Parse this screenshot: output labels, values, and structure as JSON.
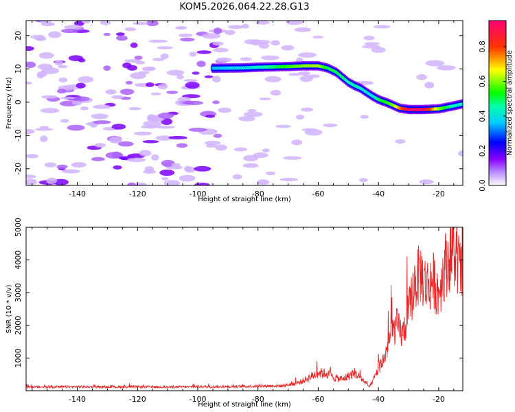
{
  "figure": {
    "title": "KOM5.2026.064.22.28.G13"
  },
  "chart_data": [
    {
      "type": "heatmap",
      "id": "spectrogram",
      "xlabel": "Height of straight line (km)",
      "ylabel": "Frequency (Hz)",
      "xlim": [
        -157,
        -12
      ],
      "ylim": [
        -25,
        24.5
      ],
      "xticks": [
        -140,
        -120,
        -100,
        -80,
        -60,
        -40,
        -20
      ],
      "yticks": [
        -20,
        -10,
        0,
        10,
        20
      ],
      "colorbar": {
        "label": "Normalized spectral amplitude",
        "range": [
          0,
          0.95
        ],
        "ticks": [
          0,
          0.2,
          0.4,
          0.6,
          0.8
        ],
        "colors": [
          "#ffffff",
          "#8800ff",
          "#0000ff",
          "#00ffff",
          "#00ff00",
          "#ffff00",
          "#ff0000",
          "#ff0077"
        ]
      },
      "signal_trace": {
        "description": "frequency track of strong signal",
        "height_km": [
          -95,
          -85,
          -80,
          -70,
          -65,
          -60,
          -57,
          -54,
          -52,
          -50,
          -48,
          -46,
          -44,
          -42,
          -40,
          -37,
          -35,
          -33,
          -30,
          -25,
          -20,
          -16,
          -12
        ],
        "frequency_hz": [
          10.2,
          10.3,
          10.5,
          10.7,
          10.9,
          10.9,
          10.3,
          9.0,
          7.5,
          6.0,
          5.0,
          4.2,
          3.0,
          1.8,
          0.8,
          -0.2,
          -1.0,
          -1.8,
          -2.2,
          -2.2,
          -2.0,
          -1.3,
          -0.5
        ],
        "amplitude": [
          0.35,
          0.38,
          0.42,
          0.55,
          0.6,
          0.62,
          0.5,
          0.5,
          0.48,
          0.45,
          0.45,
          0.42,
          0.4,
          0.4,
          0.5,
          0.55,
          0.6,
          0.75,
          0.92,
          0.92,
          0.6,
          0.45,
          0.4
        ]
      }
    },
    {
      "type": "line",
      "id": "snr",
      "xlabel": "Height of straight line (km)",
      "ylabel": "SNR (10 * v/v)",
      "xlim": [
        -157,
        -12
      ],
      "ylim": [
        0,
        5000
      ],
      "xticks": [
        -140,
        -120,
        -100,
        -80,
        -60,
        -40,
        -20
      ],
      "yticks": [
        1000,
        2000,
        3000,
        4000,
        5000
      ],
      "series": [
        {
          "name": "SNR",
          "color": "#ee2222",
          "x": [
            -157,
            -150,
            -140,
            -130,
            -120,
            -110,
            -100,
            -90,
            -80,
            -72,
            -68,
            -65,
            -62,
            -60,
            -57,
            -55,
            -52,
            -50,
            -48,
            -46,
            -44,
            -43,
            -42,
            -40,
            -38,
            -36,
            -34,
            -32,
            -30,
            -28,
            -26,
            -24,
            -22,
            -20,
            -18,
            -16,
            -14,
            -12
          ],
          "y": [
            120,
            110,
            120,
            110,
            120,
            110,
            125,
            120,
            140,
            150,
            210,
            300,
            450,
            550,
            520,
            400,
            350,
            450,
            550,
            400,
            220,
            120,
            250,
            700,
            1000,
            1700,
            2000,
            1700,
            2400,
            3300,
            3600,
            3200,
            3400,
            3000,
            3800,
            4200,
            4000,
            3500
          ]
        }
      ]
    }
  ]
}
